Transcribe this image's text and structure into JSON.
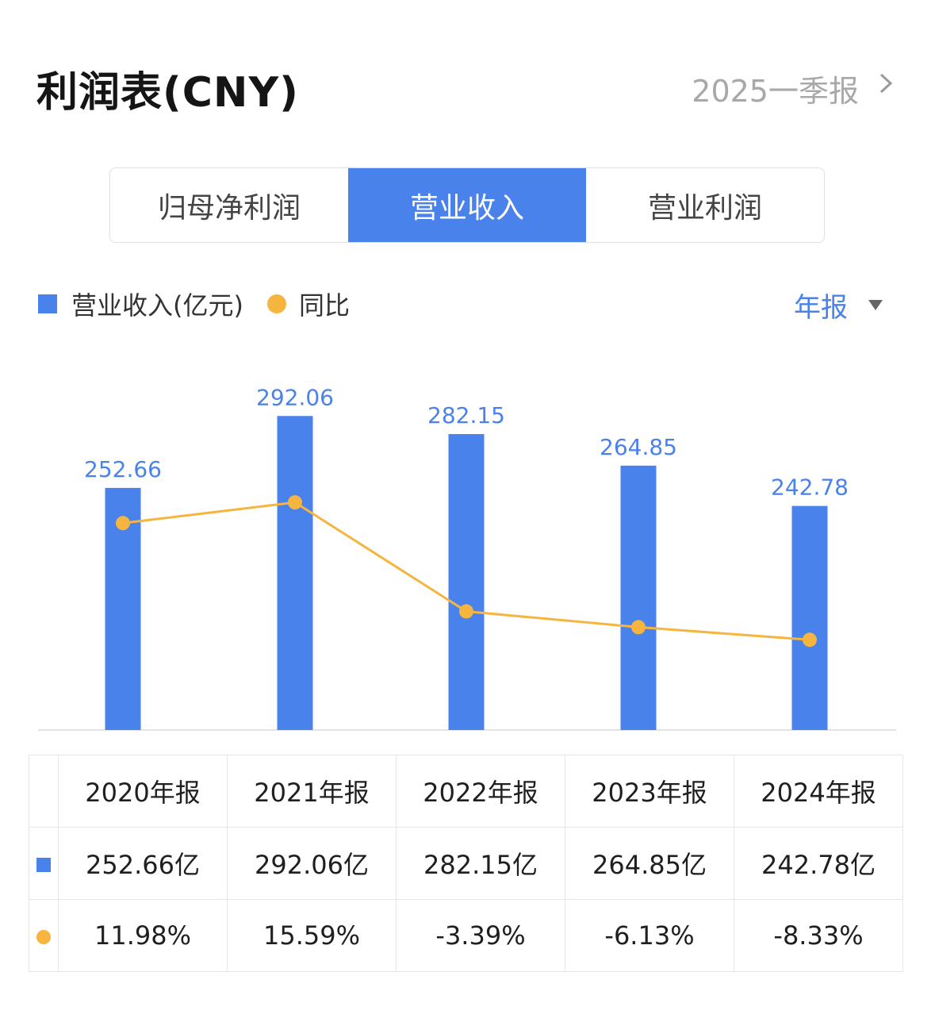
{
  "header": {
    "title": "利润表(CNY)",
    "period": "2025一季报"
  },
  "tabs": [
    {
      "label": "归母净利润",
      "active": false
    },
    {
      "label": "营业收入",
      "active": true
    },
    {
      "label": "营业利润",
      "active": false
    }
  ],
  "legend": {
    "revenue": "营业收入(亿元)",
    "yoy": "同比"
  },
  "frequency": {
    "label": "年报"
  },
  "colors": {
    "bar": "#4a82ec",
    "line": "#f5b53f",
    "positive": "#d9534f",
    "negative": "#3fa970",
    "active_tab": "#4a82ec"
  },
  "chart_data": {
    "type": "bar",
    "categories": [
      "2020年报",
      "2021年报",
      "2022年报",
      "2023年报",
      "2024年报"
    ],
    "series": [
      {
        "name": "营业收入(亿元)",
        "type": "bar",
        "values": [
          252.66,
          292.06,
          282.15,
          264.85,
          242.78
        ],
        "labels": [
          "252.66",
          "292.06",
          "282.15",
          "264.85",
          "242.78"
        ]
      },
      {
        "name": "同比",
        "type": "line",
        "values": [
          11.98,
          15.59,
          -3.39,
          -6.13,
          -8.33
        ]
      }
    ],
    "legend_position": "top-left",
    "grid": false
  },
  "table": {
    "headers": [
      "2020年报",
      "2021年报",
      "2022年报",
      "2023年报",
      "2024年报"
    ],
    "revenue": [
      "252.66亿",
      "292.06亿",
      "282.15亿",
      "264.85亿",
      "242.78亿"
    ],
    "yoy": [
      "11.98%",
      "15.59%",
      "-3.39%",
      "-6.13%",
      "-8.33%"
    ]
  }
}
